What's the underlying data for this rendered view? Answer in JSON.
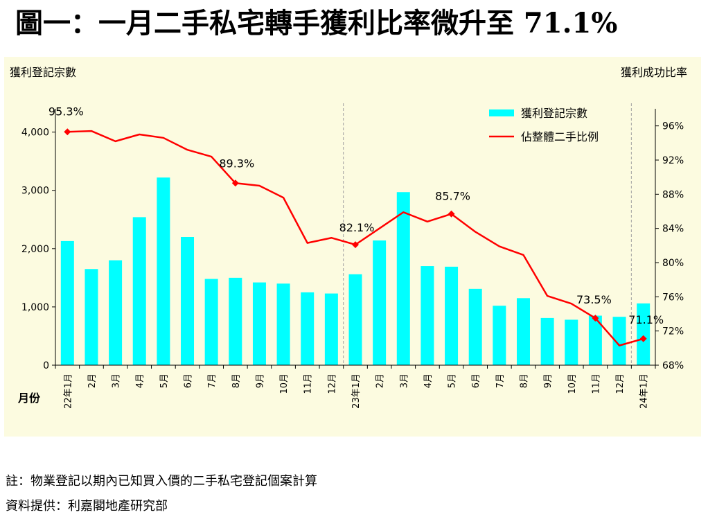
{
  "title": "圖一：一月二手私宅轉手獲利比率微升至 71.1%",
  "notes": {
    "note": "註：物業登記以期內已知買入價的二手私宅登記個案計算",
    "source": "資料提供：利嘉閣地產研究部"
  },
  "colors": {
    "bar": "#00ffff",
    "line": "#ff0000",
    "background": "#fcfbe0",
    "divider": "#a0a0a0"
  },
  "chart_data": {
    "type": "bar+line",
    "left_axis_title": "獲利登記宗數",
    "right_axis_title": "獲利成功比率",
    "x_axis_title": "月份",
    "categories": [
      "22年1月",
      "2月",
      "3月",
      "4月",
      "5月",
      "6月",
      "7月",
      "8月",
      "9月",
      "10月",
      "11月",
      "12月",
      "23年1月",
      "2月",
      "3月",
      "4月",
      "5月",
      "6月",
      "7月",
      "8月",
      "9月",
      "10月",
      "11月",
      "12月",
      "24年1月"
    ],
    "left_ylim": [
      0,
      4400
    ],
    "left_ticks": [
      0,
      1000,
      2000,
      3000,
      4000
    ],
    "left_tick_labels": [
      "0",
      "1,000",
      "2,000",
      "3,000",
      "4,000"
    ],
    "right_ylim": [
      68,
      98
    ],
    "right_ticks": [
      68,
      72,
      76,
      80,
      84,
      88,
      92,
      96
    ],
    "right_tick_labels": [
      "68%",
      "72%",
      "76%",
      "80%",
      "84%",
      "88%",
      "92%",
      "96%"
    ],
    "series": [
      {
        "name": "獲利登記宗數",
        "type": "bar",
        "axis": "left",
        "values": [
          2130,
          1650,
          1800,
          2540,
          3220,
          2200,
          1480,
          1500,
          1420,
          1400,
          1250,
          1230,
          1560,
          2140,
          2970,
          1700,
          1690,
          1310,
          1020,
          1150,
          810,
          780,
          850,
          830,
          1060
        ]
      },
      {
        "name": "佔整體二手比例",
        "type": "line",
        "axis": "right",
        "values": [
          95.3,
          95.4,
          94.2,
          95.0,
          94.6,
          93.2,
          92.4,
          89.3,
          89.0,
          87.6,
          82.3,
          82.9,
          82.1,
          84.0,
          85.9,
          84.8,
          85.7,
          83.6,
          81.9,
          80.9,
          76.1,
          75.2,
          73.5,
          70.3,
          71.1
        ]
      }
    ],
    "annotations": [
      {
        "index": 0,
        "label": "95.3%"
      },
      {
        "index": 7,
        "label": "89.3%"
      },
      {
        "index": 12,
        "label": "82.1%"
      },
      {
        "index": 16,
        "label": "85.7%"
      },
      {
        "index": 22,
        "label": "73.5%"
      },
      {
        "index": 24,
        "label": "71.1%"
      }
    ],
    "year_dividers_after_index": [
      11,
      23
    ]
  }
}
